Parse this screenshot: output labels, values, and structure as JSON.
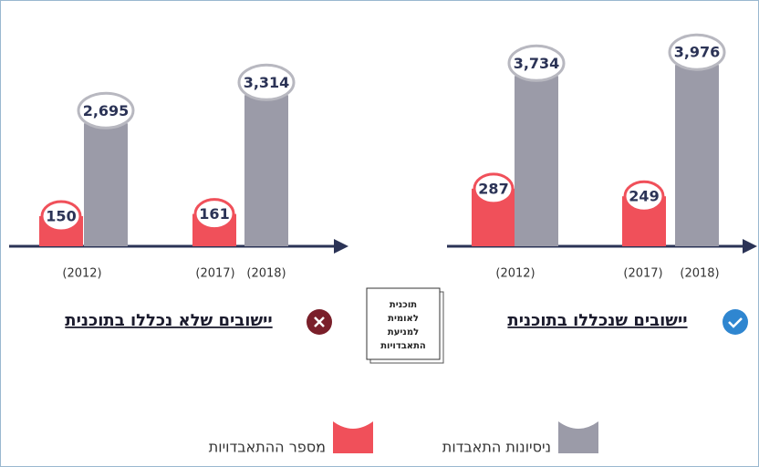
{
  "chart_data": [
    {
      "type": "bar",
      "title": "יישובים שנכללו בתוכנית",
      "group_labels": [
        [
          "(2012)"
        ],
        [
          "(2017)",
          "(2018)"
        ]
      ],
      "ylim": [
        0,
        4400
      ],
      "y2lim": [
        0,
        1000
      ],
      "series": [
        {
          "name": "מספר ההתאבדויות",
          "color": "#f0505a",
          "axis": "y2",
          "values": [
            287,
            249
          ]
        },
        {
          "name": "ניסיונות התאבדות",
          "color": "#9b9ba8",
          "values": [
            3734,
            3976
          ],
          "value_labels": [
            "3,734",
            "3,976"
          ]
        }
      ]
    },
    {
      "type": "bar",
      "title": "יישובים שלא נכללו בתוכנית",
      "group_labels": [
        [
          "(2012)"
        ],
        [
          "(2017)",
          "(2018)"
        ]
      ],
      "ylim": [
        0,
        4400
      ],
      "y2lim": [
        0,
        1000
      ],
      "series": [
        {
          "name": "מספר ההתאבדויות",
          "color": "#f0505a",
          "axis": "y2",
          "values": [
            150,
            161
          ]
        },
        {
          "name": "ניסיונות התאבדות",
          "color": "#9b9ba8",
          "values": [
            2695,
            3314
          ],
          "value_labels": [
            "2,695",
            "3,314"
          ]
        }
      ]
    }
  ],
  "book": {
    "lines": [
      "תוכנית",
      "לאומית",
      "למניעת",
      "התאבדויות"
    ]
  }
}
